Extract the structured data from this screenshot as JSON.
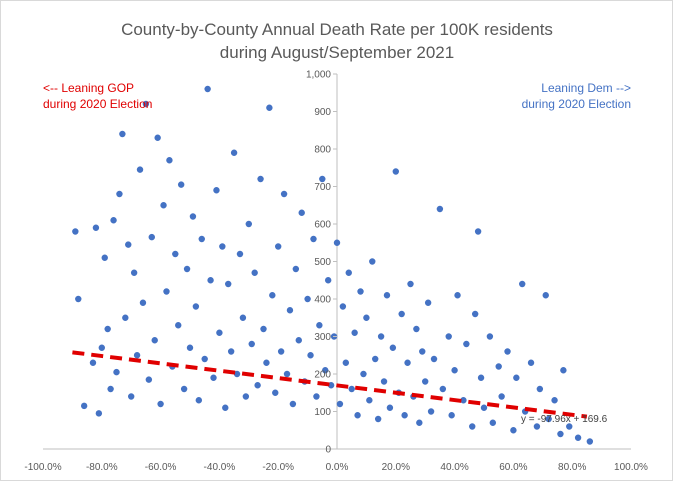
{
  "chart_data": {
    "type": "scatter",
    "title": [
      "County-by-County Annual Death Rate per 100K residents",
      "during August/September 2021"
    ],
    "xlabel": "",
    "ylabel": "",
    "xlim": [
      -1.0,
      1.0
    ],
    "ylim": [
      0,
      1000
    ],
    "x_ticks": [
      -1.0,
      -0.8,
      -0.6,
      -0.4,
      -0.2,
      0.0,
      0.2,
      0.4,
      0.6,
      0.8,
      1.0
    ],
    "x_tick_labels": [
      "-100.0%",
      "-80.0%",
      "-60.0%",
      "-40.0%",
      "-20.0%",
      "0.0%",
      "20.0%",
      "40.0%",
      "60.0%",
      "80.0%",
      "100.0%"
    ],
    "y_ticks": [
      0,
      100,
      200,
      300,
      400,
      500,
      600,
      700,
      800,
      900,
      1000
    ],
    "y_tick_labels": [
      "0",
      "100",
      "200",
      "300",
      "400",
      "500",
      "600",
      "700",
      "800",
      "900",
      "1,000"
    ],
    "grid": false,
    "marker_color": "#4472c4",
    "trendline": {
      "slope": -97.96,
      "intercept": 169.6,
      "x_range": [
        -0.9,
        0.85
      ],
      "color": "#e00000",
      "style": "dashed",
      "equation_label": "y = -97.96x + 169.6"
    },
    "annotations": {
      "gop": [
        "<-- Leaning GOP",
        "during 2020  Election"
      ],
      "dem": [
        "Leaning Dem -->",
        "during 2020  Election"
      ]
    },
    "points": [
      [
        -0.89,
        580
      ],
      [
        -0.88,
        400
      ],
      [
        -0.86,
        115
      ],
      [
        -0.83,
        230
      ],
      [
        -0.82,
        590
      ],
      [
        -0.81,
        95
      ],
      [
        -0.8,
        270
      ],
      [
        -0.79,
        510
      ],
      [
        -0.78,
        320
      ],
      [
        -0.77,
        160
      ],
      [
        -0.76,
        610
      ],
      [
        -0.75,
        205
      ],
      [
        -0.74,
        680
      ],
      [
        -0.73,
        840
      ],
      [
        -0.72,
        350
      ],
      [
        -0.71,
        545
      ],
      [
        -0.7,
        140
      ],
      [
        -0.69,
        470
      ],
      [
        -0.68,
        250
      ],
      [
        -0.67,
        745
      ],
      [
        -0.66,
        390
      ],
      [
        -0.65,
        920
      ],
      [
        -0.64,
        185
      ],
      [
        -0.63,
        565
      ],
      [
        -0.62,
        290
      ],
      [
        -0.61,
        830
      ],
      [
        -0.6,
        120
      ],
      [
        -0.59,
        650
      ],
      [
        -0.58,
        420
      ],
      [
        -0.57,
        770
      ],
      [
        -0.56,
        220
      ],
      [
        -0.55,
        520
      ],
      [
        -0.54,
        330
      ],
      [
        -0.53,
        705
      ],
      [
        -0.52,
        160
      ],
      [
        -0.51,
        480
      ],
      [
        -0.5,
        270
      ],
      [
        -0.49,
        620
      ],
      [
        -0.48,
        380
      ],
      [
        -0.47,
        130
      ],
      [
        -0.46,
        560
      ],
      [
        -0.45,
        240
      ],
      [
        -0.44,
        960
      ],
      [
        -0.43,
        450
      ],
      [
        -0.42,
        190
      ],
      [
        -0.41,
        690
      ],
      [
        -0.4,
        310
      ],
      [
        -0.39,
        540
      ],
      [
        -0.38,
        110
      ],
      [
        -0.37,
        440
      ],
      [
        -0.36,
        260
      ],
      [
        -0.35,
        790
      ],
      [
        -0.34,
        200
      ],
      [
        -0.33,
        520
      ],
      [
        -0.32,
        350
      ],
      [
        -0.31,
        140
      ],
      [
        -0.3,
        600
      ],
      [
        -0.29,
        280
      ],
      [
        -0.28,
        470
      ],
      [
        -0.27,
        170
      ],
      [
        -0.26,
        720
      ],
      [
        -0.25,
        320
      ],
      [
        -0.24,
        230
      ],
      [
        -0.23,
        910
      ],
      [
        -0.22,
        410
      ],
      [
        -0.21,
        150
      ],
      [
        -0.2,
        540
      ],
      [
        -0.19,
        260
      ],
      [
        -0.18,
        680
      ],
      [
        -0.17,
        200
      ],
      [
        -0.16,
        370
      ],
      [
        -0.15,
        120
      ],
      [
        -0.14,
        480
      ],
      [
        -0.13,
        290
      ],
      [
        -0.12,
        630
      ],
      [
        -0.11,
        180
      ],
      [
        -0.1,
        400
      ],
      [
        -0.09,
        250
      ],
      [
        -0.08,
        560
      ],
      [
        -0.07,
        140
      ],
      [
        -0.06,
        330
      ],
      [
        -0.05,
        720
      ],
      [
        -0.04,
        210
      ],
      [
        -0.03,
        450
      ],
      [
        -0.02,
        170
      ],
      [
        -0.01,
        300
      ],
      [
        0.0,
        550
      ],
      [
        0.01,
        120
      ],
      [
        0.02,
        380
      ],
      [
        0.03,
        230
      ],
      [
        0.04,
        470
      ],
      [
        0.05,
        160
      ],
      [
        0.06,
        310
      ],
      [
        0.07,
        90
      ],
      [
        0.08,
        420
      ],
      [
        0.09,
        200
      ],
      [
        0.1,
        350
      ],
      [
        0.11,
        130
      ],
      [
        0.12,
        500
      ],
      [
        0.13,
        240
      ],
      [
        0.14,
        80
      ],
      [
        0.15,
        300
      ],
      [
        0.16,
        180
      ],
      [
        0.17,
        410
      ],
      [
        0.18,
        110
      ],
      [
        0.19,
        270
      ],
      [
        0.2,
        740
      ],
      [
        0.21,
        150
      ],
      [
        0.22,
        360
      ],
      [
        0.23,
        90
      ],
      [
        0.24,
        230
      ],
      [
        0.25,
        440
      ],
      [
        0.26,
        140
      ],
      [
        0.27,
        320
      ],
      [
        0.28,
        70
      ],
      [
        0.29,
        260
      ],
      [
        0.3,
        180
      ],
      [
        0.31,
        390
      ],
      [
        0.32,
        100
      ],
      [
        0.33,
        240
      ],
      [
        0.35,
        640
      ],
      [
        0.36,
        160
      ],
      [
        0.38,
        300
      ],
      [
        0.39,
        90
      ],
      [
        0.4,
        210
      ],
      [
        0.41,
        410
      ],
      [
        0.43,
        130
      ],
      [
        0.44,
        280
      ],
      [
        0.46,
        60
      ],
      [
        0.47,
        360
      ],
      [
        0.48,
        580
      ],
      [
        0.49,
        190
      ],
      [
        0.5,
        110
      ],
      [
        0.52,
        300
      ],
      [
        0.53,
        70
      ],
      [
        0.55,
        220
      ],
      [
        0.56,
        140
      ],
      [
        0.58,
        260
      ],
      [
        0.6,
        50
      ],
      [
        0.61,
        190
      ],
      [
        0.63,
        440
      ],
      [
        0.64,
        100
      ],
      [
        0.66,
        230
      ],
      [
        0.68,
        60
      ],
      [
        0.69,
        160
      ],
      [
        0.71,
        410
      ],
      [
        0.72,
        80
      ],
      [
        0.74,
        130
      ],
      [
        0.76,
        40
      ],
      [
        0.77,
        210
      ],
      [
        0.79,
        60
      ],
      [
        0.82,
        30
      ],
      [
        0.86,
        20
      ]
    ]
  }
}
